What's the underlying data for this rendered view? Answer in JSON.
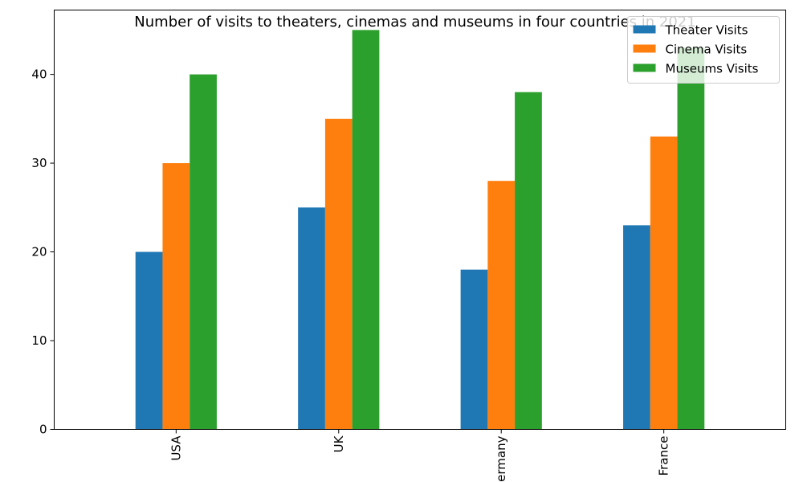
{
  "chart_data": {
    "type": "bar",
    "title": "Number of visits to theaters, cinemas and museums in four countries in 2021",
    "xlabel": "",
    "ylabel": "",
    "categories": [
      "USA",
      "UK",
      "Germany",
      "France"
    ],
    "series": [
      {
        "name": "Theater Visits",
        "color": "#1f77b4",
        "values": [
          20,
          25,
          18,
          23
        ]
      },
      {
        "name": "Cinema Visits",
        "color": "#ff7f0e",
        "values": [
          30,
          35,
          28,
          33
        ]
      },
      {
        "name": "Museums Visits",
        "color": "#2ca02c",
        "values": [
          40,
          45,
          38,
          43
        ]
      }
    ],
    "ylim": [
      0,
      47.25
    ],
    "yticks": [
      0,
      10,
      20,
      30,
      40
    ],
    "x_tick_rotation": "vertical",
    "legend_position": "top-right",
    "grid": false
  }
}
